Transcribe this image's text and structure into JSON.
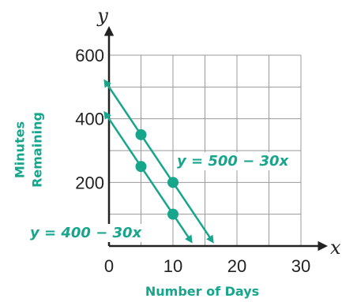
{
  "chart_data": {
    "type": "line",
    "title": "",
    "xlabel": "Number of Days",
    "ylabel_lines": [
      "Minutes",
      "Remaining"
    ],
    "x_var": "x",
    "y_var": "y",
    "xlim": [
      0,
      30
    ],
    "ylim": [
      0,
      600
    ],
    "x_ticks": [
      "0",
      "10",
      "20",
      "30"
    ],
    "y_ticks": [
      "200",
      "400",
      "600"
    ],
    "grid": true,
    "colors": {
      "accent": "#17a58c",
      "axis": "#222222",
      "grid": "#9a9a9a"
    },
    "series": [
      {
        "equation": "y = 500 − 30x",
        "intercept": 500,
        "slope": -30,
        "x_range": [
          0,
          16.67
        ],
        "points": [
          {
            "x": 5,
            "y": 350
          },
          {
            "x": 10,
            "y": 200
          }
        ]
      },
      {
        "equation": "y = 400 − 30x",
        "intercept": 400,
        "slope": -30,
        "x_range": [
          0,
          13.33
        ],
        "points": [
          {
            "x": 5,
            "y": 250
          },
          {
            "x": 10,
            "y": 100
          }
        ]
      }
    ]
  }
}
